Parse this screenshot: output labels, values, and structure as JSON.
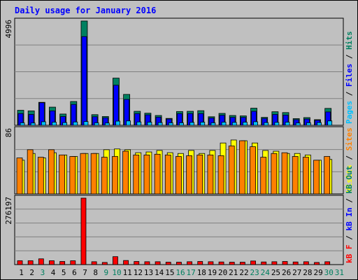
{
  "chart_data": {
    "type": "bar",
    "title": "Daily usage for January 2016",
    "categories": [
      "1",
      "2",
      "3",
      "4",
      "5",
      "6",
      "7",
      "8",
      "9",
      "10",
      "11",
      "12",
      "13",
      "14",
      "15",
      "16",
      "17",
      "18",
      "19",
      "20",
      "21",
      "22",
      "23",
      "24",
      "25",
      "26",
      "27",
      "28",
      "29",
      "30",
      "31"
    ],
    "weekend_days": [
      "3",
      "9",
      "10",
      "16",
      "17",
      "23",
      "24",
      "30",
      "31"
    ],
    "panels": [
      {
        "scale_label": "4996",
        "ymax": 4996,
        "side_label": [
          {
            "text": "Pages",
            "color": "#00c0ff"
          },
          {
            "text": " / ",
            "color": "#000000"
          },
          {
            "text": "Files",
            "color": "#0000ff"
          },
          {
            "text": " / ",
            "color": "#000000"
          },
          {
            "text": "Hits",
            "color": "#008060"
          }
        ],
        "series": [
          {
            "name": "Hits",
            "color": "#008060",
            "values": [
              720,
              690,
              1100,
              870,
              540,
              1140,
              4996,
              510,
              420,
              2260,
              1480,
              670,
              580,
              470,
              330,
              660,
              670,
              700,
              410,
              570,
              470,
              450,
              820,
              380,
              650,
              610,
              320,
              370,
              270,
              810,
              0
            ]
          },
          {
            "name": "Files",
            "color": "#0000ff",
            "values": [
              560,
              520,
              1080,
              690,
              420,
              1000,
              4250,
              410,
              360,
              1920,
              1240,
              560,
              500,
              390,
              300,
              560,
              560,
              560,
              350,
              480,
              380,
              380,
              670,
              330,
              520,
              490,
              270,
              300,
              240,
              640,
              0
            ]
          },
          {
            "name": "Pages",
            "color": "#00c0ff",
            "values": [
              120,
              110,
              170,
              150,
              130,
              160,
              180,
              120,
              110,
              200,
              210,
              160,
              150,
              130,
              120,
              120,
              140,
              150,
              120,
              150,
              140,
              150,
              170,
              130,
              140,
              150,
              110,
              120,
              130,
              210,
              0
            ]
          }
        ]
      },
      {
        "scale_label": "86",
        "ymax": 86,
        "side_label": [
          {
            "text": "Visits",
            "color": "#ffff00"
          },
          {
            "text": " / ",
            "color": "#000000"
          },
          {
            "text": "Sites",
            "color": "#ff8000"
          }
        ],
        "series": [
          {
            "name": "Visits",
            "color": "#ffff00",
            "values": [
              45,
              54,
              48,
              55,
              52,
              50,
              54,
              54,
              59,
              60,
              59,
              55,
              56,
              58,
              55,
              54,
              58,
              54,
              58,
              68,
              72,
              71,
              68,
              58,
              57,
              54,
              54,
              52,
              45,
              46,
              0
            ]
          },
          {
            "name": "Sites",
            "color": "#ff8000",
            "values": [
              48,
              59,
              49,
              59,
              52,
              50,
              54,
              54,
              49,
              50,
              57,
              52,
              52,
              53,
              52,
              50,
              51,
              52,
              52,
              51,
              64,
              71,
              63,
              49,
              54,
              55,
              50,
              49,
              45,
              50,
              0
            ]
          }
        ]
      },
      {
        "scale_label": "276197",
        "ymax": 276197,
        "side_label": [
          {
            "text": "kB F",
            "color": "#ff0000"
          },
          {
            "text": " / ",
            "color": "#000000"
          },
          {
            "text": "kB In",
            "color": "#0000ff"
          },
          {
            "text": " / ",
            "color": "#000000"
          },
          {
            "text": "kB Out",
            "color": "#008060"
          }
        ],
        "series": [
          {
            "name": "kB F",
            "color": "#ff0000",
            "values": [
              16000,
              16000,
              24000,
              16000,
              13000,
              16000,
              276197,
              12000,
              9000,
              33000,
              17000,
              13000,
              12000,
              12000,
              10000,
              10000,
              12000,
              13000,
              12000,
              11000,
              10000,
              10000,
              15000,
              11000,
              12000,
              13000,
              11000,
              12000,
              9000,
              12000,
              0
            ]
          }
        ]
      }
    ]
  }
}
